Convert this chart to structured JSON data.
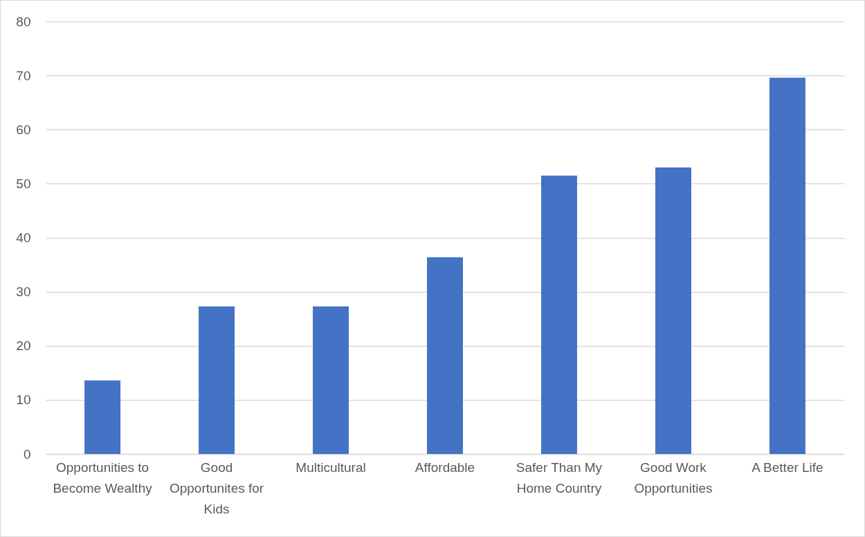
{
  "chart_data": {
    "type": "bar",
    "categories": [
      "Opportunities to Become Wealthy",
      "Good Opportunites for Kids",
      "Multicultural",
      "Affordable",
      "Safer Than My Home Country",
      "Good Work Opportunities",
      "A Better Life"
    ],
    "values": [
      13.6,
      27.3,
      27.3,
      36.4,
      51.5,
      53.0,
      69.6
    ],
    "color": "#4472c4",
    "ylim": [
      0,
      80
    ],
    "yticks": [
      0,
      10,
      20,
      30,
      40,
      50,
      60,
      70,
      80
    ],
    "grid": true
  }
}
